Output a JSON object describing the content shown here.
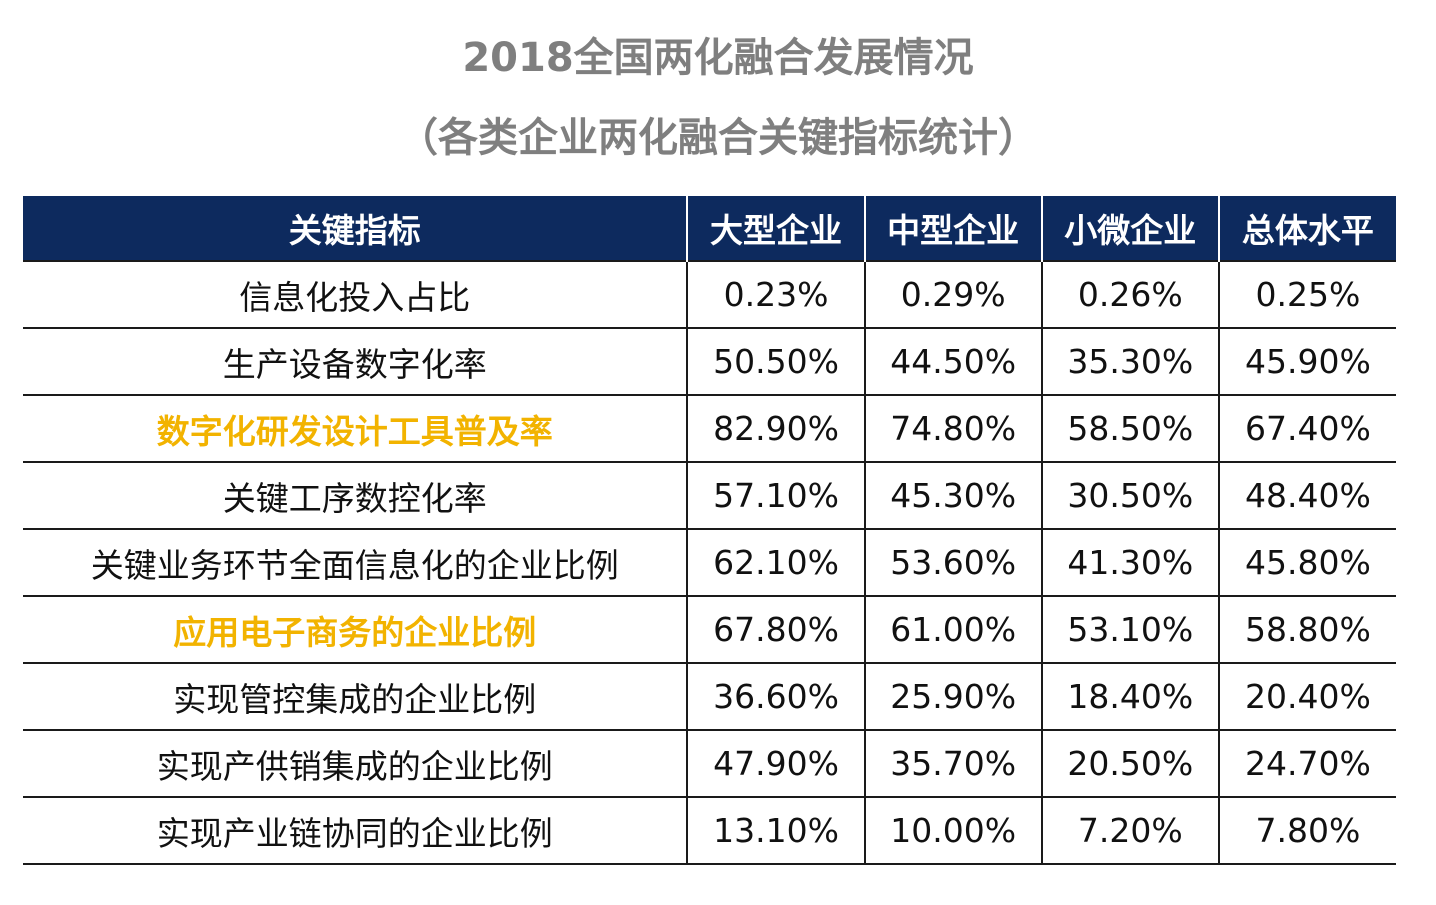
{
  "chart_data": {
    "type": "table",
    "title": "2018全国两化融合发展情况",
    "subtitle": "（各类企业两化融合关键指标统计）",
    "columns": [
      "关键指标",
      "大型企业",
      "中型企业",
      "小微企业",
      "总体水平"
    ],
    "rows": [
      {
        "label": "信息化投入占比",
        "highlight": false,
        "values": [
          "0.23%",
          "0.29%",
          "0.26%",
          "0.25%"
        ]
      },
      {
        "label": "生产设备数字化率",
        "highlight": false,
        "values": [
          "50.50%",
          "44.50%",
          "35.30%",
          "45.90%"
        ]
      },
      {
        "label": "数字化研发设计工具普及率",
        "highlight": true,
        "values": [
          "82.90%",
          "74.80%",
          "58.50%",
          "67.40%"
        ]
      },
      {
        "label": "关键工序数控化率",
        "highlight": false,
        "values": [
          "57.10%",
          "45.30%",
          "30.50%",
          "48.40%"
        ]
      },
      {
        "label": "关键业务环节全面信息化的企业比例",
        "highlight": false,
        "values": [
          "62.10%",
          "53.60%",
          "41.30%",
          "45.80%"
        ]
      },
      {
        "label": "应用电子商务的企业比例",
        "highlight": true,
        "values": [
          "67.80%",
          "61.00%",
          "53.10%",
          "58.80%"
        ]
      },
      {
        "label": "实现管控集成的企业比例",
        "highlight": false,
        "values": [
          "36.60%",
          "25.90%",
          "18.40%",
          "20.40%"
        ]
      },
      {
        "label": "实现产供销集成的企业比例",
        "highlight": false,
        "values": [
          "47.90%",
          "35.70%",
          "20.50%",
          "24.70%"
        ]
      },
      {
        "label": "实现产业链协同的企业比例",
        "highlight": false,
        "values": [
          "13.10%",
          "10.00%",
          "7.20%",
          "7.80%"
        ]
      }
    ]
  },
  "colors": {
    "header_bg": "#0d2a5e",
    "header_text": "#ffffff",
    "highlight_text": "#f2b300",
    "title_text": "#7f7f7f"
  }
}
